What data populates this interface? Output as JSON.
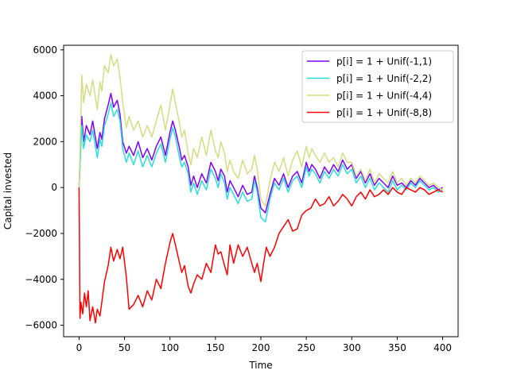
{
  "chart_data": {
    "type": "line",
    "title": "",
    "xlabel": "Time",
    "ylabel": "Capital invested",
    "xlim": [
      -17,
      417
    ],
    "ylim": [
      -6500,
      6200
    ],
    "xticks": [
      0,
      50,
      100,
      150,
      200,
      250,
      300,
      350,
      400
    ],
    "yticks": [
      -6000,
      -4000,
      -2000,
      0,
      2000,
      4000,
      6000
    ],
    "grid": false,
    "legend": "top-right",
    "series": [
      {
        "name": "p[i] = 1 + Unif(-1,1)",
        "color": "#8000ff",
        "x": [
          0,
          3,
          5,
          8,
          12,
          15,
          20,
          23,
          25,
          28,
          32,
          35,
          38,
          42,
          45,
          48,
          52,
          55,
          60,
          65,
          70,
          75,
          80,
          85,
          90,
          95,
          100,
          103,
          106,
          110,
          113,
          116,
          120,
          123,
          126,
          130,
          135,
          140,
          145,
          150,
          153,
          156,
          160,
          163,
          166,
          170,
          175,
          180,
          185,
          190,
          193,
          196,
          200,
          205,
          210,
          215,
          220,
          225,
          230,
          235,
          240,
          245,
          250,
          253,
          256,
          260,
          265,
          270,
          275,
          280,
          285,
          290,
          295,
          300,
          305,
          310,
          315,
          320,
          325,
          330,
          335,
          340,
          345,
          350,
          355,
          360,
          365,
          370,
          375,
          380,
          385,
          390,
          395,
          400
        ],
        "y": [
          0,
          3100,
          2000,
          2700,
          2300,
          2900,
          1700,
          2400,
          2100,
          3000,
          3600,
          4100,
          3500,
          3800,
          3200,
          2000,
          1500,
          1800,
          1400,
          2000,
          1300,
          1700,
          1200,
          1800,
          2200,
          1400,
          2400,
          2900,
          2500,
          1800,
          1200,
          1400,
          900,
          100,
          500,
          0,
          600,
          200,
          1100,
          700,
          300,
          800,
          500,
          -200,
          300,
          0,
          -400,
          100,
          -300,
          -200,
          500,
          0,
          -900,
          -1100,
          -300,
          400,
          100,
          600,
          0,
          500,
          700,
          200,
          1100,
          700,
          1000,
          800,
          400,
          900,
          600,
          1000,
          700,
          1200,
          800,
          1000,
          400,
          700,
          200,
          600,
          100,
          400,
          200,
          0,
          500,
          100,
          200,
          0,
          300,
          100,
          400,
          200,
          0,
          100,
          -100,
          0
        ]
      },
      {
        "name": "p[i] = 1 + Unif(-2,2)",
        "color": "#2adddd",
        "x": [
          0,
          3,
          5,
          8,
          12,
          15,
          20,
          23,
          25,
          28,
          32,
          35,
          38,
          42,
          45,
          48,
          52,
          55,
          60,
          65,
          70,
          75,
          80,
          85,
          90,
          95,
          100,
          103,
          106,
          110,
          113,
          116,
          120,
          123,
          126,
          130,
          135,
          140,
          145,
          150,
          153,
          156,
          160,
          163,
          166,
          170,
          175,
          180,
          185,
          190,
          193,
          196,
          200,
          205,
          210,
          215,
          220,
          225,
          230,
          235,
          240,
          245,
          250,
          253,
          256,
          260,
          265,
          270,
          275,
          280,
          285,
          290,
          295,
          300,
          305,
          310,
          315,
          320,
          325,
          330,
          335,
          340,
          345,
          350,
          355,
          360,
          365,
          370,
          375,
          380,
          385,
          390,
          395,
          400
        ],
        "y": [
          0,
          2700,
          1700,
          2300,
          2000,
          2500,
          1300,
          2100,
          1800,
          2700,
          3200,
          3700,
          3100,
          3400,
          2900,
          1700,
          1100,
          1500,
          1000,
          1600,
          900,
          1400,
          900,
          1500,
          1900,
          1100,
          2100,
          2600,
          2200,
          1400,
          900,
          1100,
          600,
          -200,
          200,
          -300,
          300,
          -100,
          800,
          400,
          0,
          600,
          200,
          -500,
          0,
          -300,
          -700,
          -200,
          -600,
          -500,
          300,
          -200,
          -1300,
          -1500,
          -500,
          200,
          -100,
          400,
          -200,
          300,
          500,
          0,
          900,
          500,
          800,
          600,
          200,
          700,
          400,
          800,
          500,
          1000,
          600,
          800,
          200,
          500,
          0,
          400,
          -100,
          200,
          0,
          -200,
          300,
          -100,
          100,
          -100,
          200,
          0,
          300,
          100,
          -100,
          0,
          -200,
          -100
        ]
      },
      {
        "name": "p[i] = 1 + Unif(-4,4)",
        "color": "#d4dd80",
        "x": [
          0,
          3,
          5,
          8,
          12,
          15,
          20,
          23,
          25,
          28,
          32,
          35,
          38,
          42,
          45,
          48,
          52,
          55,
          60,
          65,
          70,
          75,
          80,
          85,
          90,
          95,
          100,
          103,
          106,
          110,
          113,
          116,
          120,
          123,
          126,
          130,
          135,
          140,
          145,
          150,
          153,
          156,
          160,
          163,
          166,
          170,
          175,
          180,
          185,
          190,
          193,
          196,
          200,
          205,
          210,
          215,
          220,
          225,
          230,
          235,
          240,
          245,
          250,
          253,
          256,
          260,
          265,
          270,
          275,
          280,
          285,
          290,
          295,
          300,
          305,
          310,
          315,
          320,
          325,
          330,
          335,
          340,
          345,
          350,
          355,
          360,
          365,
          370,
          375,
          380,
          385,
          390,
          395,
          400
        ],
        "y": [
          0,
          4900,
          3700,
          4500,
          4000,
          4700,
          3400,
          4600,
          4200,
          5300,
          5000,
          5800,
          5300,
          5600,
          4800,
          3700,
          2600,
          3100,
          2500,
          2900,
          2200,
          2700,
          2200,
          2900,
          3600,
          2500,
          3600,
          4300,
          3700,
          2900,
          2200,
          2500,
          1500,
          1000,
          1700,
          1300,
          2200,
          1400,
          2500,
          1600,
          1300,
          2000,
          1500,
          700,
          1200,
          700,
          400,
          1200,
          600,
          800,
          1400,
          800,
          -500,
          -800,
          300,
          1100,
          700,
          1300,
          500,
          1200,
          1600,
          900,
          1800,
          1300,
          1700,
          1400,
          1100,
          1500,
          1100,
          1300,
          900,
          1500,
          1100,
          1100,
          500,
          800,
          300,
          800,
          200,
          600,
          400,
          200,
          700,
          200,
          400,
          100,
          400,
          200,
          500,
          300,
          100,
          200,
          0,
          -100
        ]
      },
      {
        "name": "p[i] = 1 + Unif(-8,8)",
        "color": "#ff0000",
        "x": [
          0,
          1,
          2,
          4,
          6,
          8,
          10,
          12,
          15,
          18,
          20,
          23,
          25,
          28,
          32,
          35,
          38,
          42,
          45,
          48,
          52,
          55,
          60,
          65,
          70,
          75,
          80,
          85,
          90,
          95,
          100,
          103,
          106,
          110,
          113,
          116,
          120,
          123,
          126,
          130,
          135,
          140,
          145,
          150,
          153,
          156,
          160,
          163,
          166,
          170,
          175,
          180,
          185,
          190,
          193,
          196,
          200,
          203,
          206,
          210,
          215,
          220,
          225,
          230,
          235,
          240,
          245,
          250,
          255,
          260,
          265,
          270,
          275,
          280,
          285,
          290,
          295,
          300,
          305,
          310,
          315,
          320,
          325,
          330,
          335,
          340,
          345,
          350,
          355,
          360,
          365,
          370,
          375,
          380,
          385,
          390,
          395,
          400
        ],
        "y": [
          0,
          -5700,
          -5000,
          -5500,
          -4600,
          -5200,
          -4500,
          -5800,
          -5200,
          -5900,
          -5300,
          -5600,
          -5000,
          -4100,
          -3400,
          -2600,
          -3200,
          -2700,
          -3100,
          -2600,
          -3900,
          -5300,
          -5100,
          -4700,
          -5200,
          -4500,
          -4900,
          -4000,
          -4400,
          -3300,
          -2400,
          -2000,
          -2500,
          -3200,
          -3700,
          -3400,
          -4300,
          -4600,
          -4200,
          -3800,
          -4000,
          -3300,
          -3700,
          -2500,
          -2900,
          -2800,
          -3400,
          -3800,
          -2500,
          -3300,
          -2500,
          -3000,
          -2600,
          -3300,
          -3700,
          -3300,
          -4100,
          -3300,
          -2600,
          -3000,
          -2600,
          -2000,
          -1700,
          -1400,
          -1900,
          -1800,
          -1200,
          -1000,
          -900,
          -500,
          -800,
          -700,
          -400,
          -800,
          -600,
          -300,
          -500,
          -800,
          -400,
          -200,
          -500,
          -100,
          -400,
          -300,
          -100,
          -300,
          0,
          -200,
          -300,
          0,
          -100,
          -200,
          0,
          -100,
          -300,
          -200,
          -100,
          -200
        ]
      }
    ]
  }
}
